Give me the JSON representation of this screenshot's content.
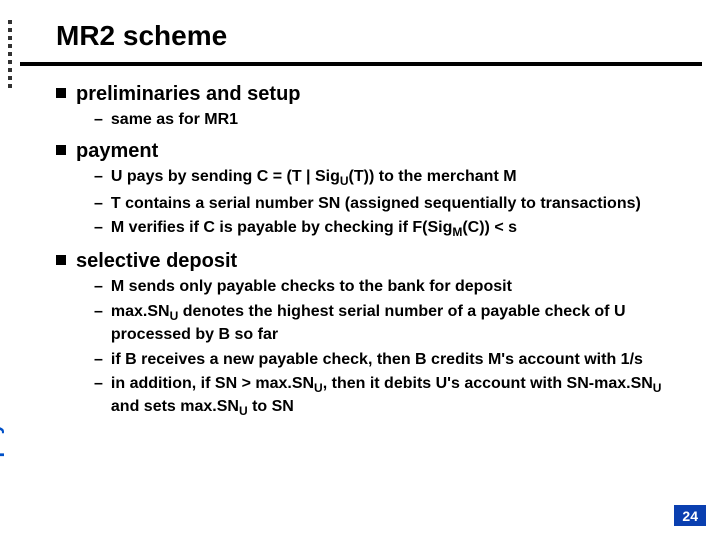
{
  "title": "MR2 scheme",
  "sidebar_label": "micropayments",
  "page_number": "24",
  "colors": {
    "accent": "#0a3fb0",
    "sidebar_text": "#0050c8",
    "rule": "#000000",
    "text": "#000000"
  },
  "sections": [
    {
      "heading": "preliminaries and setup",
      "items": [
        {
          "html": "same as for MR1"
        }
      ]
    },
    {
      "heading": "payment",
      "items": [
        {
          "html": "U pays by sending C = (T | Sig<sub>U</sub>(T)) to the merchant M"
        },
        {
          "html": "T contains a serial number SN (assigned sequentially to transactions)"
        },
        {
          "html": "M verifies if C is payable by checking if F(Sig<sub>M</sub>(C)) < s"
        }
      ]
    },
    {
      "heading": "selective deposit",
      "items": [
        {
          "html": "M sends only payable checks to the bank for deposit"
        },
        {
          "html": "max.SN<sub>U</sub> denotes the highest serial number of a payable check of U processed by B so far"
        },
        {
          "html": "if B receives a new payable check, then B credits M's account with 1/s"
        },
        {
          "html": "in addition, if SN > max.SN<sub>U</sub>, then it debits U's account with SN-max.SN<sub>U</sub> and sets max.SN<sub>U</sub> to SN"
        }
      ]
    }
  ]
}
